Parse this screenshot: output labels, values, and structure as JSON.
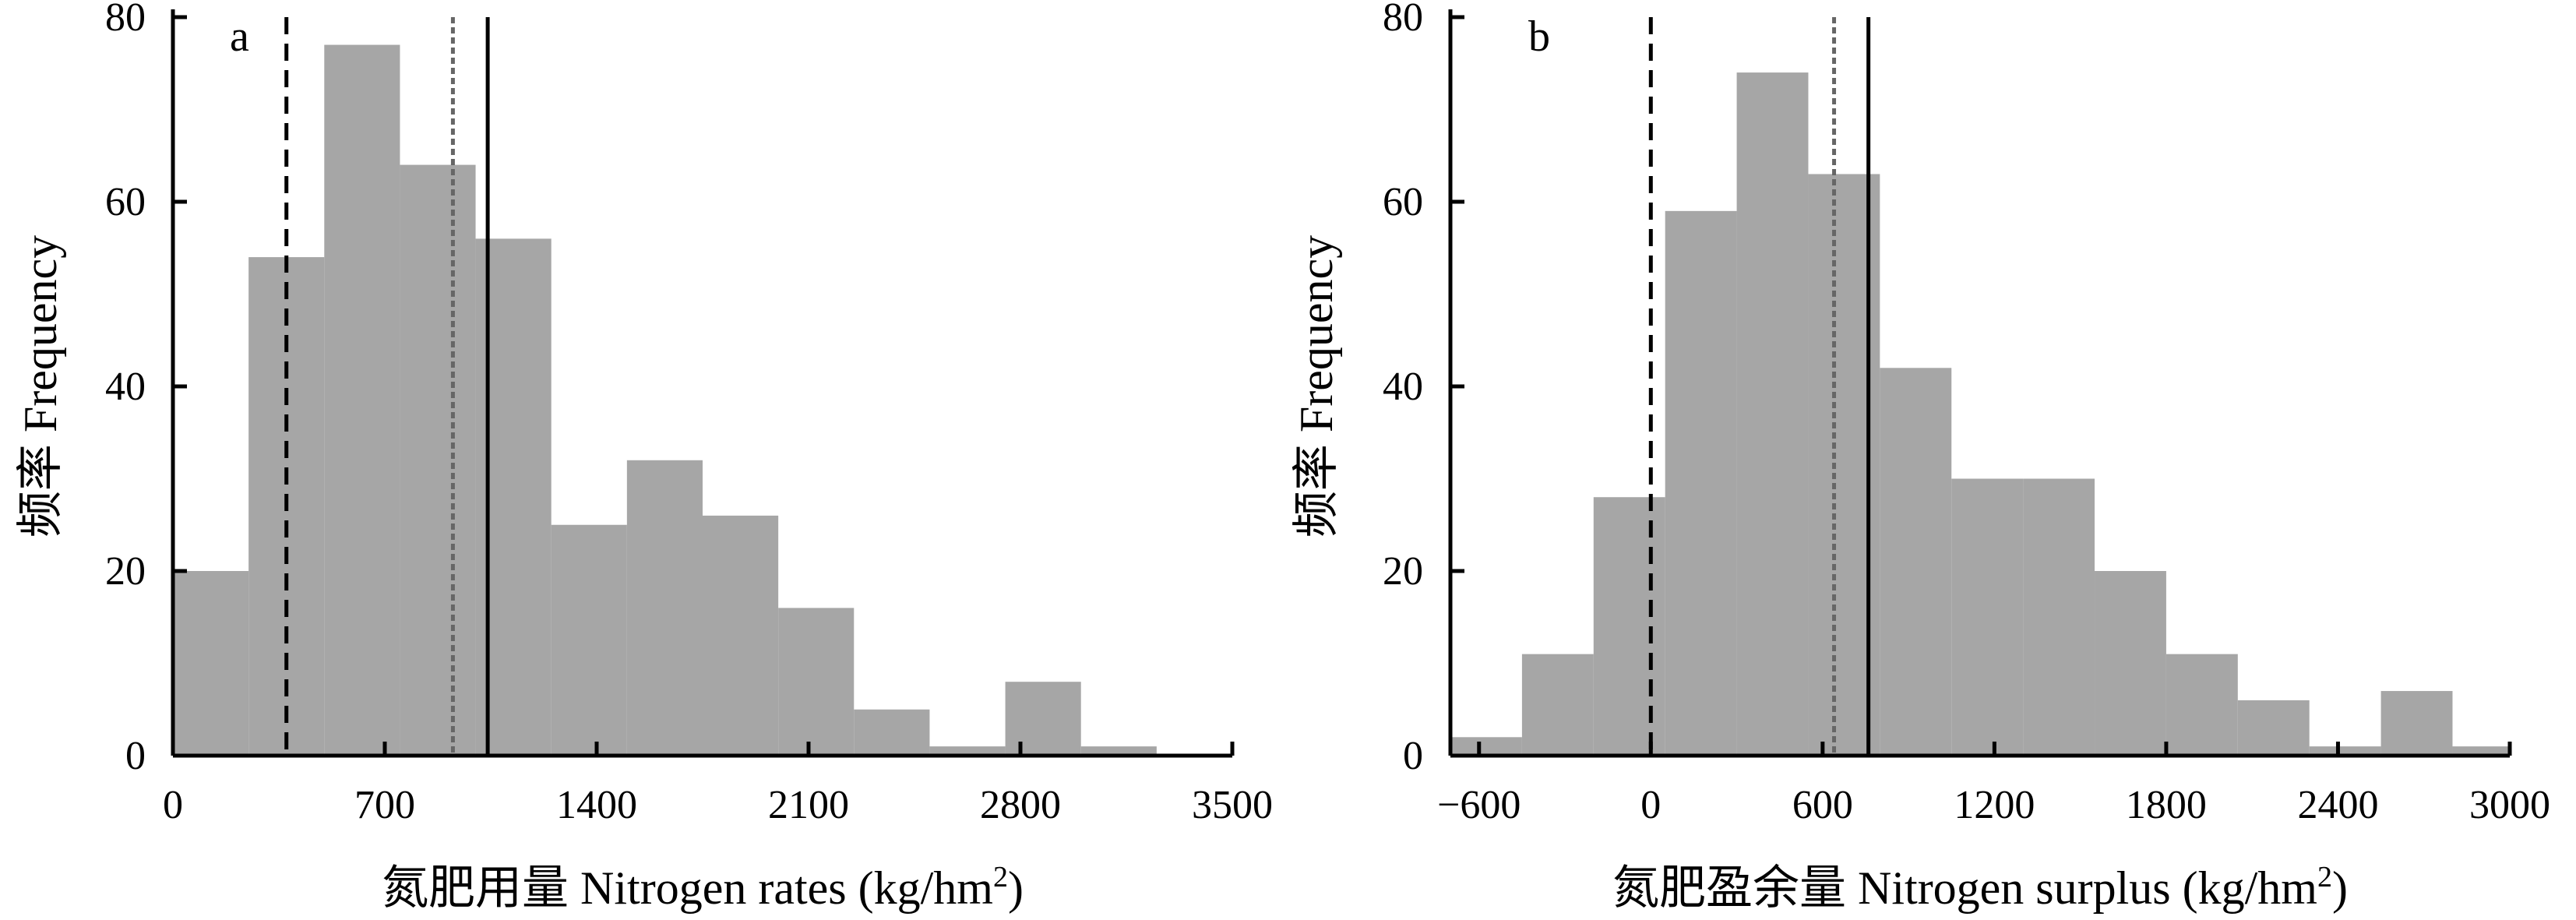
{
  "chart_data": [
    {
      "type": "bar",
      "panel_label": "a",
      "xlabel_prefix": "氮肥用量 Nitrogen rates (kg/hm",
      "xlabel_sup": "2",
      "xlabel_suffix": ")",
      "ylabel": "频率 Frequency",
      "xlim": [
        0,
        3500
      ],
      "ylim": [
        0,
        80
      ],
      "xticks": [
        0,
        700,
        1400,
        2100,
        2800,
        3500
      ],
      "yticks": [
        0,
        20,
        40,
        60,
        80
      ],
      "bins": [
        {
          "x0": 0,
          "x1": 250,
          "count": 20
        },
        {
          "x0": 250,
          "x1": 500,
          "count": 54
        },
        {
          "x0": 500,
          "x1": 750,
          "count": 77
        },
        {
          "x0": 750,
          "x1": 1000,
          "count": 64
        },
        {
          "x0": 1000,
          "x1": 1250,
          "count": 56
        },
        {
          "x0": 1250,
          "x1": 1500,
          "count": 25
        },
        {
          "x0": 1500,
          "x1": 1750,
          "count": 32
        },
        {
          "x0": 1750,
          "x1": 2000,
          "count": 26
        },
        {
          "x0": 2000,
          "x1": 2250,
          "count": 16
        },
        {
          "x0": 2250,
          "x1": 2500,
          "count": 5
        },
        {
          "x0": 2500,
          "x1": 2750,
          "count": 1
        },
        {
          "x0": 2750,
          "x1": 3000,
          "count": 8
        },
        {
          "x0": 3000,
          "x1": 3250,
          "count": 1
        }
      ],
      "vlines": [
        {
          "x": 375,
          "style": "dashed",
          "color": "#000000"
        },
        {
          "x": 925,
          "style": "dotted",
          "color": "#666666"
        },
        {
          "x": 1040,
          "style": "solid",
          "color": "#000000"
        }
      ]
    },
    {
      "type": "bar",
      "panel_label": "b",
      "xlabel_prefix": "氮肥盈余量 Nitrogen surplus (kg/hm",
      "xlabel_sup": "2",
      "xlabel_suffix": ")",
      "ylabel": "频率 Frequency",
      "xlim": [
        -700,
        3000
      ],
      "ylim": [
        0,
        80
      ],
      "xticks": [
        -600,
        0,
        600,
        1200,
        1800,
        2400,
        3000
      ],
      "xtick_labels": [
        "−600",
        "0",
        "600",
        "1200",
        "1800",
        "2400",
        "3000"
      ],
      "yticks": [
        0,
        20,
        40,
        60,
        80
      ],
      "bins": [
        {
          "x0": -700,
          "x1": -450,
          "count": 2
        },
        {
          "x0": -450,
          "x1": -200,
          "count": 11
        },
        {
          "x0": -200,
          "x1": 50,
          "count": 28
        },
        {
          "x0": 50,
          "x1": 300,
          "count": 59
        },
        {
          "x0": 300,
          "x1": 550,
          "count": 74
        },
        {
          "x0": 550,
          "x1": 800,
          "count": 63
        },
        {
          "x0": 800,
          "x1": 1050,
          "count": 42
        },
        {
          "x0": 1050,
          "x1": 1300,
          "count": 30
        },
        {
          "x0": 1300,
          "x1": 1550,
          "count": 30
        },
        {
          "x0": 1550,
          "x1": 1800,
          "count": 20
        },
        {
          "x0": 1800,
          "x1": 2050,
          "count": 11
        },
        {
          "x0": 2050,
          "x1": 2300,
          "count": 6
        },
        {
          "x0": 2300,
          "x1": 2550,
          "count": 1
        },
        {
          "x0": 2550,
          "x1": 2800,
          "count": 7
        },
        {
          "x0": 2800,
          "x1": 3000,
          "count": 1
        }
      ],
      "vlines": [
        {
          "x": 0,
          "style": "dashed",
          "color": "#000000"
        },
        {
          "x": 640,
          "style": "dotted",
          "color": "#666666"
        },
        {
          "x": 760,
          "style": "solid",
          "color": "#000000"
        }
      ]
    }
  ],
  "colors": {
    "bar": "#a6a6a6",
    "axis": "#000000"
  }
}
